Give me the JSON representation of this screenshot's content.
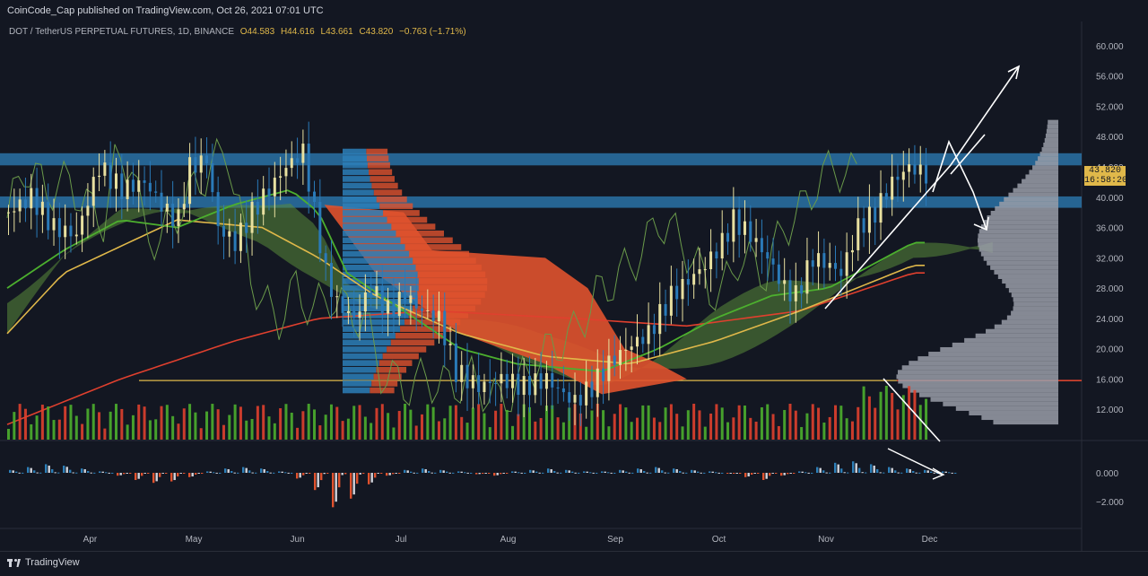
{
  "header": {
    "publisher": "CoinCode_Cap published on TradingView.com, Oct 26, 2021 07:01 UTC"
  },
  "symbol": {
    "name": "DOT / TetherUS PERPETUAL FUTURES, 1D, BINANCE",
    "open": "O44.583",
    "high": "H44.616",
    "low": "L43.661",
    "close": "C43.820",
    "change": "−0.763 (−1.71%)"
  },
  "price_tag": {
    "price": "43.820",
    "countdown": "16:58:20"
  },
  "footer": {
    "brand": "TradingView"
  },
  "colors": {
    "background": "#131722",
    "up": "#e8e0a0",
    "down": "#2a7ab8",
    "zone": "#2d7fb8",
    "cloud_bull": "#5a8a3a",
    "cloud_bear": "#e0522e",
    "sma_red": "#e0402e",
    "sma_yellow": "#e0b84a",
    "sma_green": "#4caf2e",
    "lagging": "#6a9a4a"
  },
  "chart_data": {
    "type": "candlestick",
    "price_axis_ticks": [
      "60.000",
      "56.000",
      "52.000",
      "48.000",
      "44.000",
      "40.000",
      "36.000",
      "32.000",
      "28.000",
      "24.000",
      "20.000",
      "16.000",
      "12.000"
    ],
    "price_range": [
      8,
      62
    ],
    "oscillator_ticks": [
      "0.000",
      "−2.000"
    ],
    "time_axis_ticks": [
      "Apr",
      "May",
      "Jun",
      "Jul",
      "Aug",
      "Sep",
      "Oct",
      "Nov",
      "Dec"
    ],
    "last_close": 43.82,
    "resistance_zones": [
      [
        44.2,
        45.8
      ],
      [
        38.6,
        40.1
      ]
    ],
    "support_level": 15.8,
    "price_path": [
      [
        0,
        38
      ],
      [
        8,
        40
      ],
      [
        16,
        36
      ],
      [
        24,
        35
      ],
      [
        32,
        44
      ],
      [
        40,
        41
      ],
      [
        48,
        42
      ],
      [
        56,
        38
      ],
      [
        60,
        37
      ],
      [
        64,
        44
      ],
      [
        70,
        45
      ],
      [
        74,
        36
      ],
      [
        80,
        34
      ],
      [
        86,
        38
      ],
      [
        92,
        41
      ],
      [
        98,
        44
      ],
      [
        104,
        46
      ],
      [
        108,
        38
      ],
      [
        112,
        30
      ],
      [
        116,
        26
      ],
      [
        122,
        24
      ],
      [
        128,
        28
      ],
      [
        134,
        25
      ],
      [
        140,
        27
      ],
      [
        146,
        25
      ],
      [
        152,
        24
      ],
      [
        158,
        17
      ],
      [
        166,
        15
      ],
      [
        174,
        16
      ],
      [
        182,
        15
      ],
      [
        190,
        16
      ],
      [
        196,
        14
      ],
      [
        200,
        13
      ],
      [
        206,
        15
      ],
      [
        212,
        18
      ],
      [
        218,
        20
      ],
      [
        226,
        22
      ],
      [
        234,
        27
      ],
      [
        240,
        29
      ],
      [
        246,
        31
      ],
      [
        252,
        34
      ],
      [
        256,
        37
      ],
      [
        262,
        35
      ],
      [
        268,
        32
      ],
      [
        274,
        28
      ],
      [
        278,
        27
      ],
      [
        284,
        32
      ],
      [
        290,
        31
      ],
      [
        294,
        30
      ],
      [
        300,
        36
      ],
      [
        306,
        38
      ],
      [
        312,
        42
      ],
      [
        318,
        44
      ],
      [
        324,
        43
      ]
    ],
    "sma_200": [
      [
        0,
        10
      ],
      [
        40,
        16
      ],
      [
        80,
        21
      ],
      [
        110,
        24
      ],
      [
        150,
        25
      ],
      [
        200,
        24
      ],
      [
        240,
        23
      ],
      [
        280,
        25
      ],
      [
        320,
        30
      ]
    ],
    "sma_50": [
      [
        0,
        22
      ],
      [
        20,
        30
      ],
      [
        60,
        37
      ],
      [
        90,
        36
      ],
      [
        110,
        32
      ],
      [
        130,
        27
      ],
      [
        160,
        22
      ],
      [
        190,
        19
      ],
      [
        220,
        18
      ],
      [
        250,
        21
      ],
      [
        280,
        25
      ],
      [
        300,
        28
      ],
      [
        320,
        31
      ]
    ],
    "sma_20": [
      [
        0,
        28
      ],
      [
        20,
        33
      ],
      [
        40,
        37
      ],
      [
        60,
        36
      ],
      [
        80,
        39
      ],
      [
        100,
        41
      ],
      [
        110,
        38
      ],
      [
        120,
        30
      ],
      [
        140,
        25
      ],
      [
        160,
        20
      ],
      [
        180,
        18
      ],
      [
        210,
        17
      ],
      [
        230,
        20
      ],
      [
        250,
        24
      ],
      [
        270,
        27
      ],
      [
        290,
        28
      ],
      [
        320,
        34
      ]
    ],
    "histogram": [
      0.2,
      0.4,
      0.6,
      0.5,
      0.3,
      0.1,
      -0.2,
      -0.5,
      -0.7,
      -0.6,
      -0.3,
      0.1,
      0.3,
      0.4,
      0.3,
      0.1,
      -0.4,
      -1.2,
      -2.4,
      -1.8,
      -0.8,
      -0.2,
      0.2,
      0.3,
      0.2,
      0.1,
      -0.1,
      -0.2,
      0.1,
      0.2,
      0.3,
      0.2,
      0.1,
      0.1,
      0.2,
      0.3,
      0.4,
      0.3,
      0.2,
      0.1,
      0.0,
      -0.3,
      -0.5,
      -0.2,
      0.1,
      0.4,
      0.7,
      0.8,
      0.6,
      0.4,
      0.3,
      0.2,
      0.1
    ]
  }
}
